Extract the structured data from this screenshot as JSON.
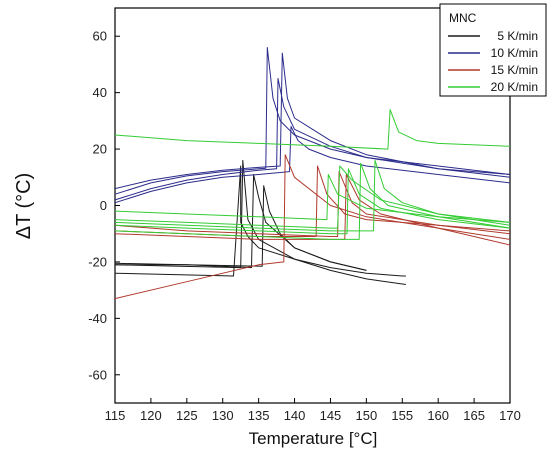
{
  "chart_data": {
    "type": "line",
    "xlabel": "Temperature [°C]",
    "ylabel": "ΔT (°C)",
    "xlim": [
      115,
      170
    ],
    "ylim": [
      -70,
      70
    ],
    "x_ticks": [
      115,
      120,
      125,
      130,
      135,
      140,
      145,
      150,
      155,
      160,
      165,
      170
    ],
    "y_ticks": [
      -60,
      -40,
      -20,
      0,
      20,
      40,
      60
    ],
    "grid": false,
    "legend": {
      "title": "MNC",
      "position": "top-right"
    },
    "series": [
      {
        "name": "5 K/min",
        "color": "#1a1a1a",
        "curves": [
          {
            "x": [
              115,
              131.5,
              131.5,
              132.5,
              132.5,
              133.5,
              135,
              140,
              145,
              150,
              155,
              155.5
            ],
            "y": [
              -24,
              -25,
              -25,
              14,
              -6,
              -11,
              -15,
              -19,
              -22,
              -24,
              -25,
              -25
            ]
          },
          {
            "x": [
              115,
              124,
              132.5,
              132.8,
              133.5,
              135,
              140,
              145,
              150,
              155.5
            ],
            "y": [
              -21,
              -21.5,
              -22,
              16,
              -5,
              -12,
              -19,
              -23,
              -26,
              -28
            ]
          },
          {
            "x": [
              115,
              125,
              134,
              134.3,
              135,
              136,
              140,
              145,
              150
            ],
            "y": [
              -21,
              -21,
              -22,
              11,
              3,
              -6,
              -15,
              -20,
              -23
            ]
          },
          {
            "x": [
              115,
              125,
              135.5,
              135.7,
              136.5,
              138,
              140,
              145,
              150
            ],
            "y": [
              -20.5,
              -21,
              -21.5,
              7,
              -2,
              -10,
              -15,
              -20,
              -23
            ]
          }
        ]
      },
      {
        "name": "10 K/min",
        "color": "#2c2c8c",
        "curves": [
          {
            "x": [
              115,
              120,
              125,
              130,
              135,
              136,
              136.2,
              137,
              138,
              140,
              145,
              150,
              160,
              170
            ],
            "y": [
              4,
              8,
              10.5,
              12,
              13,
              13.2,
              56,
              38,
              30,
              25,
              20,
              17,
              14,
              11
            ]
          },
          {
            "x": [
              115,
              120,
              125,
              130,
              135,
              137.5,
              137.7,
              138.5,
              140,
              145,
              150,
              160,
              170
            ],
            "y": [
              2,
              6,
              9,
              11,
              12.5,
              13,
              45,
              35,
              27,
              21,
              17,
              13,
              10
            ]
          },
          {
            "x": [
              115,
              120,
              125,
              130,
              135,
              138,
              138.3,
              139,
              140,
              145,
              150,
              160,
              170
            ],
            "y": [
              6,
              9,
              11,
              12.5,
              13.5,
              14,
              54,
              38,
              31,
              23,
              18,
              13,
              11
            ]
          },
          {
            "x": [
              115,
              120,
              125,
              130,
              135,
              139.3,
              139.5,
              140.5,
              142,
              145,
              150,
              160,
              170
            ],
            "y": [
              1,
              5,
              8,
              10,
              11,
              12,
              28,
              23,
              20,
              17,
              14,
              11,
              8
            ]
          }
        ]
      },
      {
        "name": "15 K/min",
        "color": "#b03a2e",
        "curves": [
          {
            "x": [
              115,
              125,
              135,
              138.5,
              138.7,
              140,
              145,
              150,
              160,
              170
            ],
            "y": [
              -33,
              -27,
              -21,
              -20,
              18,
              10,
              0,
              -4,
              -8,
              -12
            ]
          },
          {
            "x": [
              115,
              125,
              135,
              143,
              143.2,
              144.5,
              147,
              150,
              160,
              170
            ],
            "y": [
              -9,
              -10,
              -11,
              -11,
              14,
              4,
              -3,
              -5,
              -7,
              -9
            ]
          },
          {
            "x": [
              115,
              125,
              135,
              145,
              146,
              146.2,
              148,
              150,
              160,
              170
            ],
            "y": [
              -7,
              -9,
              -10,
              -11,
              -11,
              12,
              1,
              -3,
              -7,
              -10
            ]
          },
          {
            "x": [
              115,
              125,
              135,
              145,
              147,
              147.2,
              149,
              152,
              160,
              170
            ],
            "y": [
              -10,
              -11,
              -12,
              -12,
              -12,
              11,
              2,
              -3,
              -8,
              -14
            ]
          }
        ]
      },
      {
        "name": "20 K/min",
        "color": "#33cc33",
        "curves": [
          {
            "x": [
              115,
              125,
              135,
              145,
              153,
              153.3,
              154.5,
              157,
              160,
              170
            ],
            "y": [
              25,
              23,
              22,
              21,
              20,
              34,
              26,
              23,
              22,
              21
            ]
          },
          {
            "x": [
              115,
              125,
              135,
              144.5,
              144.7,
              146,
              150,
              160,
              170
            ],
            "y": [
              -2,
              -3,
              -4,
              -5,
              11,
              4,
              -1,
              -4,
              -6
            ]
          },
          {
            "x": [
              115,
              125,
              135,
              145,
              146,
              146.3,
              148,
              152,
              160,
              170
            ],
            "y": [
              -5,
              -6,
              -7,
              -8,
              -8,
              14,
              9,
              2,
              -3,
              -6
            ]
          },
          {
            "x": [
              115,
              125,
              135,
              145,
              147.3,
              147.5,
              149,
              152,
              160,
              170
            ],
            "y": [
              -7,
              -8,
              -9,
              -10,
              -10,
              13,
              4,
              -1,
              -5,
              -8
            ]
          },
          {
            "x": [
              115,
              125,
              135,
              145,
              149,
              149.2,
              150.5,
              153,
              160,
              170
            ],
            "y": [
              -9,
              -10,
              -11,
              -12,
              -12,
              15,
              6,
              0,
              -4,
              -8
            ]
          },
          {
            "x": [
              115,
              125,
              135,
              145,
              151,
              151.2,
              152.5,
              155,
              160,
              170
            ],
            "y": [
              -6,
              -7,
              -8,
              -9,
              -9,
              16,
              6,
              1,
              -3,
              -7
            ]
          }
        ]
      }
    ]
  }
}
